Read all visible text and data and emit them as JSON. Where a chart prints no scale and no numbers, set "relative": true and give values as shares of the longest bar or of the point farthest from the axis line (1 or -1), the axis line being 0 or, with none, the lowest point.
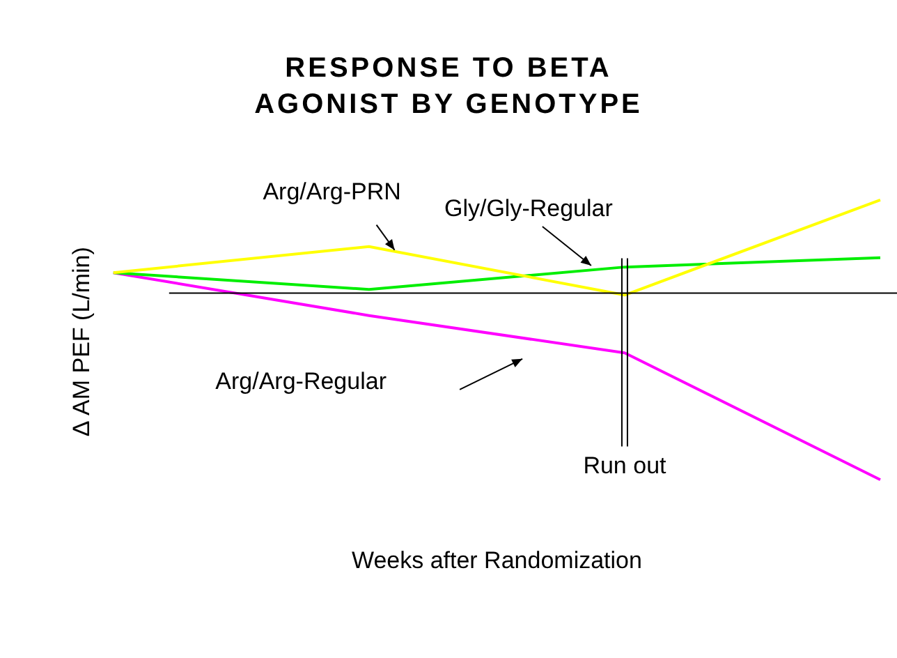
{
  "chart_data": {
    "type": "line",
    "title": "RESPONSE TO BETA AGONIST BY GENOTYPE",
    "xlabel": "Weeks after Randomization",
    "ylabel": "Δ AM PEF (L/min)",
    "relative": true,
    "categories": [
      null,
      null,
      null,
      null
    ],
    "series": [
      {
        "name": "Arg/Arg-PRN",
        "color": "#ffff00",
        "values": [
          0.11,
          0.25,
          -0.01,
          0.5
        ]
      },
      {
        "name": "Gly/Gly-Regular",
        "color": "#00ee00",
        "values": [
          0.11,
          0.02,
          0.14,
          0.19
        ]
      },
      {
        "name": "Arg/Arg-Regular",
        "color": "#ff00ff",
        "values": [
          0.11,
          -0.12,
          -0.32,
          -1
        ]
      }
    ],
    "annotations": [
      "Run out"
    ],
    "legend": false,
    "grid": false,
    "marker": "none"
  }
}
